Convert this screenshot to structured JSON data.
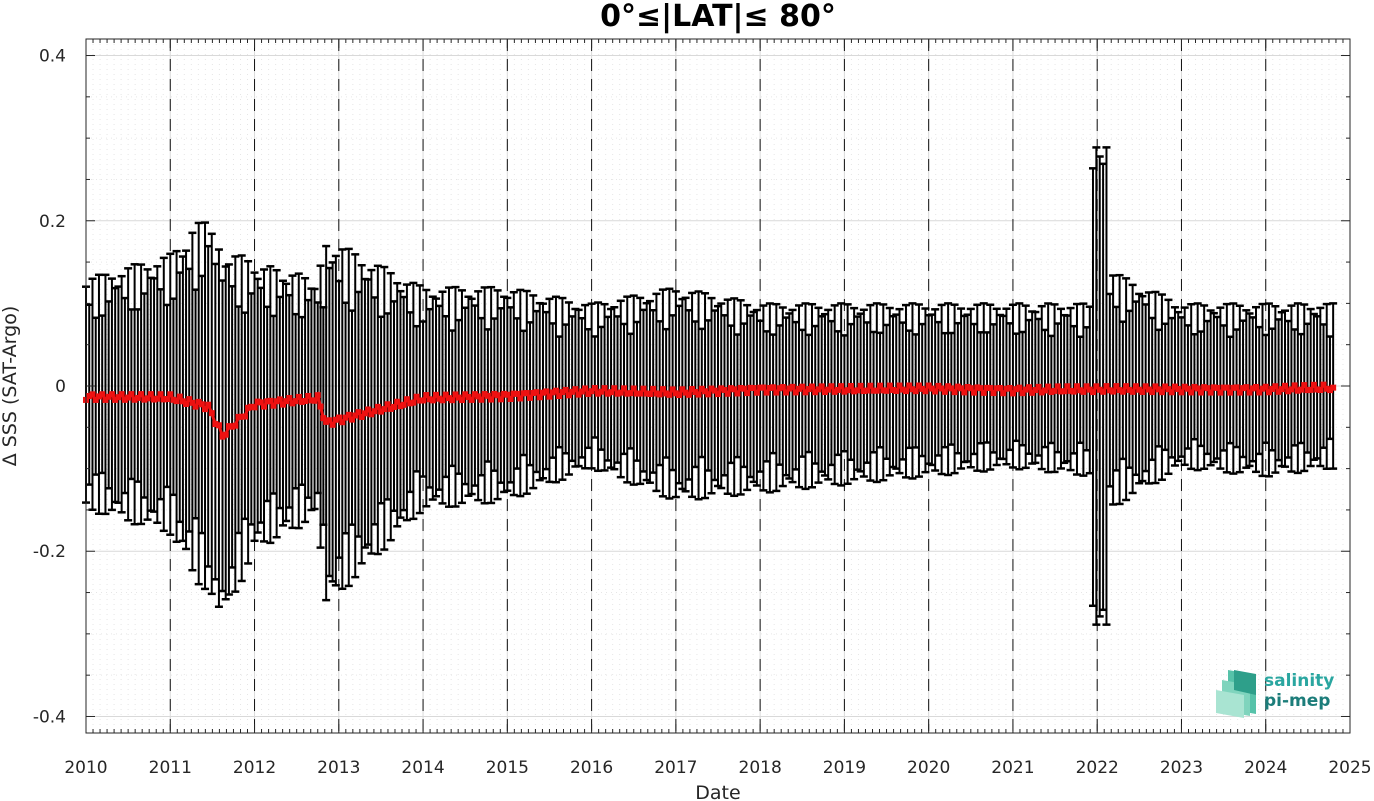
{
  "chart_data": {
    "type": "line",
    "title": "0°≤|LAT|≤ 80°",
    "xlabel": "Date",
    "ylabel": "Δ SSS (SAT-Argo)",
    "xlim": [
      2010,
      2025
    ],
    "ylim": [
      -0.42,
      0.42
    ],
    "x_ticks": [
      "2010",
      "2011",
      "2012",
      "2013",
      "2014",
      "2015",
      "2016",
      "2017",
      "2018",
      "2019",
      "2020",
      "2021",
      "2022",
      "2023",
      "2024",
      "2025"
    ],
    "y_ticks": [
      "0.4",
      "0.2",
      "0",
      "-0.2",
      "-0.4"
    ],
    "y_tick_values": [
      0.4,
      0.2,
      0,
      -0.2,
      -0.4
    ],
    "grid": true,
    "year_dividers": [
      2011,
      2012,
      2013,
      2014,
      2015,
      2016,
      2017,
      2018,
      2019,
      2020,
      2021,
      2022,
      2023,
      2024
    ],
    "series": [
      {
        "color": "#ee1111",
        "error_color": "#000000",
        "segments": [
          {
            "x": [
              2010.0,
              2011.0
            ],
            "y": [
              -0.013,
              -0.014
            ],
            "upper": [
              0.13,
              0.16
            ],
            "lower": [
              -0.15,
              -0.18
            ]
          },
          {
            "x": [
              2011.0,
              2011.45
            ],
            "y": [
              -0.014,
              -0.025
            ],
            "upper": [
              0.16,
              0.21
            ],
            "lower": [
              -0.18,
              -0.26
            ]
          },
          {
            "x": [
              2011.45,
              2011.62
            ],
            "y": [
              -0.025,
              -0.06
            ],
            "upper": [
              0.21,
              0.17
            ],
            "lower": [
              -0.26,
              -0.29
            ]
          },
          {
            "x": [
              2011.62,
              2012.0
            ],
            "y": [
              -0.06,
              -0.022
            ],
            "upper": [
              0.17,
              0.15
            ],
            "lower": [
              -0.29,
              -0.2
            ]
          },
          {
            "x": [
              2012.0,
              2012.75
            ],
            "y": [
              -0.022,
              -0.015
            ],
            "upper": [
              0.15,
              0.13
            ],
            "lower": [
              -0.2,
              -0.16
            ]
          },
          {
            "x": [
              2012.75,
              2012.85
            ],
            "y": [
              -0.015,
              -0.045
            ],
            "upper": [
              0.13,
              0.18
            ],
            "lower": [
              -0.16,
              -0.27
            ]
          },
          {
            "x": [
              2012.85,
              2014.0
            ],
            "y": [
              -0.045,
              -0.015
            ],
            "upper": [
              0.18,
              0.12
            ],
            "lower": [
              -0.27,
              -0.15
            ]
          },
          {
            "x": [
              2014.0,
              2015.0
            ],
            "y": [
              -0.015,
              -0.012
            ],
            "upper": [
              0.12,
              0.12
            ],
            "lower": [
              -0.15,
              -0.14
            ]
          },
          {
            "x": [
              2015.0,
              2016.0
            ],
            "y": [
              -0.012,
              -0.006
            ],
            "upper": [
              0.12,
              0.1
            ],
            "lower": [
              -0.14,
              -0.1
            ]
          },
          {
            "x": [
              2016.0,
              2017.0
            ],
            "y": [
              -0.006,
              -0.008
            ],
            "upper": [
              0.1,
              0.12
            ],
            "lower": [
              -0.1,
              -0.14
            ]
          },
          {
            "x": [
              2017.0,
              2018.0
            ],
            "y": [
              -0.008,
              -0.004
            ],
            "upper": [
              0.12,
              0.1
            ],
            "lower": [
              -0.14,
              -0.13
            ]
          },
          {
            "x": [
              2018.0,
              2019.0
            ],
            "y": [
              -0.004,
              -0.004
            ],
            "upper": [
              0.1,
              0.1
            ],
            "lower": [
              -0.13,
              -0.12
            ]
          },
          {
            "x": [
              2019.0,
              2020.0
            ],
            "y": [
              -0.004,
              -0.003
            ],
            "upper": [
              0.1,
              0.1
            ],
            "lower": [
              -0.12,
              -0.11
            ]
          },
          {
            "x": [
              2020.0,
              2021.0
            ],
            "y": [
              -0.003,
              -0.005
            ],
            "upper": [
              0.1,
              0.1
            ],
            "lower": [
              -0.11,
              -0.1
            ]
          },
          {
            "x": [
              2021.0,
              2021.95
            ],
            "y": [
              -0.005,
              -0.004
            ],
            "upper": [
              0.1,
              0.1
            ],
            "lower": [
              -0.1,
              -0.11
            ]
          },
          {
            "x": [
              2021.95,
              2022.15
            ],
            "y": [
              -0.004,
              -0.004
            ],
            "upper": [
              0.32,
              0.31
            ],
            "lower": [
              -0.32,
              -0.31
            ]
          },
          {
            "x": [
              2022.15,
              2023.0
            ],
            "y": [
              -0.004,
              -0.004
            ],
            "upper": [
              0.14,
              0.1
            ],
            "lower": [
              -0.15,
              -0.1
            ]
          },
          {
            "x": [
              2023.0,
              2024.0
            ],
            "y": [
              -0.004,
              -0.004
            ],
            "upper": [
              0.1,
              0.1
            ],
            "lower": [
              -0.1,
              -0.11
            ]
          },
          {
            "x": [
              2024.0,
              2024.8
            ],
            "y": [
              -0.004,
              -0.002
            ],
            "upper": [
              0.1,
              0.1
            ],
            "lower": [
              -0.11,
              -0.1
            ]
          }
        ]
      }
    ]
  },
  "logo": {
    "line1": "salinity",
    "line2": "pi-mep",
    "color1": "#2aa6a0",
    "color2": "#1c7d7a"
  }
}
